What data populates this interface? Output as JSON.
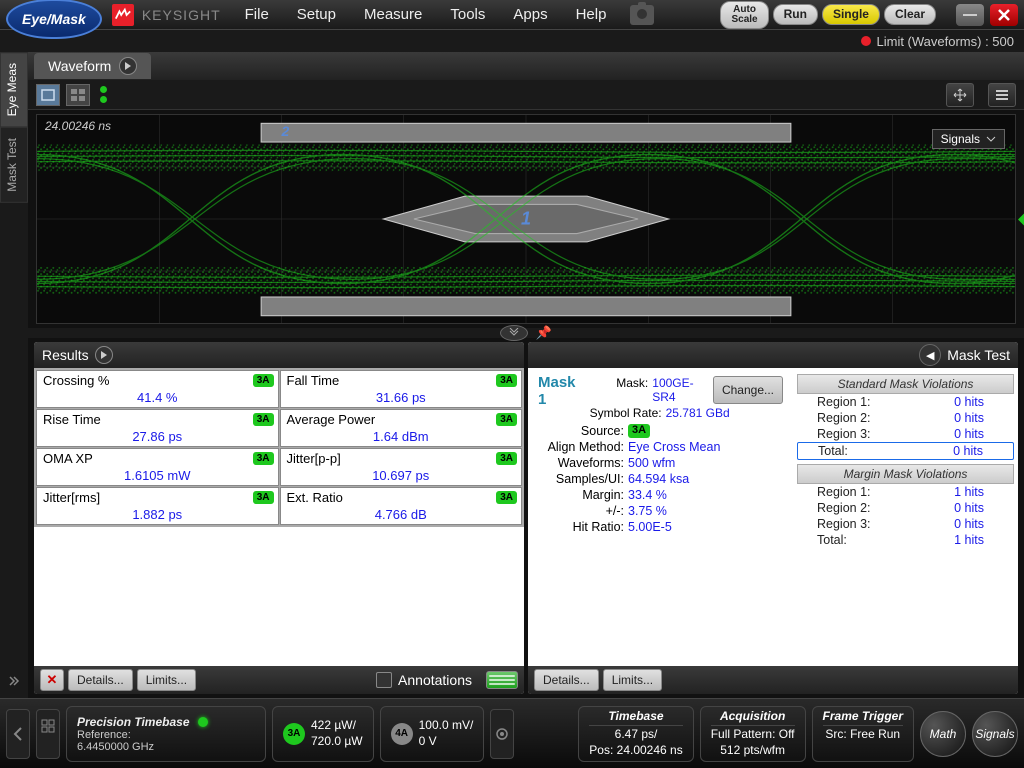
{
  "mode_label": "Eye/Mask",
  "brand": "KEYSIGHT",
  "menu": [
    "File",
    "Setup",
    "Measure",
    "Tools",
    "Apps",
    "Help"
  ],
  "top_buttons": {
    "auto_scale": "Auto\nScale",
    "run": "Run",
    "single": "Single",
    "clear": "Clear"
  },
  "limit_status": "Limit (Waveforms) : 500",
  "left_tabs": [
    "Eye Meas",
    "Mask Test"
  ],
  "waveform": {
    "tab_label": "Waveform",
    "timestamp": "24.00246 ns",
    "signals_drop": "Signals",
    "channel_marker": "3A",
    "mask_region_1": "1",
    "mask_region_2": "2",
    "colors": {
      "eye": "#1ec81e",
      "bg": "#0a0a0a",
      "mask": "#808080",
      "mask_inner": "#6a6a6a",
      "border": "#d0d0d0"
    }
  },
  "panels": {
    "results_title": "Results",
    "mask_title": "Mask Test"
  },
  "results": [
    {
      "name": "Crossing %",
      "value": "41.4 %",
      "ch": "3A"
    },
    {
      "name": "Fall Time",
      "value": "31.66 ps",
      "ch": "3A"
    },
    {
      "name": "Rise Time",
      "value": "27.86 ps",
      "ch": "3A"
    },
    {
      "name": "Average Power",
      "value": "1.64 dBm",
      "ch": "3A"
    },
    {
      "name": "OMA XP",
      "value": "1.6105 mW",
      "ch": "3A"
    },
    {
      "name": "Jitter[p-p]",
      "value": "10.697 ps",
      "ch": "3A"
    },
    {
      "name": "Jitter[rms]",
      "value": "1.882 ps",
      "ch": "3A"
    },
    {
      "name": "Ext. Ratio",
      "value": "4.766 dB",
      "ch": "3A"
    }
  ],
  "results_foot": {
    "details": "Details...",
    "limits": "Limits...",
    "annotations": "Annotations"
  },
  "mask_detail": {
    "heading": "Mask 1",
    "mask_label": "Mask:",
    "mask_val": "100GE-SR4",
    "change_btn": "Change...",
    "rate_label": "Symbol Rate:",
    "rate_val": "25.781 GBd",
    "rows": [
      {
        "k": "Source:",
        "v": "3A",
        "badge": true
      },
      {
        "k": "Align Method:",
        "v": "Eye Cross Mean"
      },
      {
        "k": "Waveforms:",
        "v": "500 wfm"
      },
      {
        "k": "Samples/UI:",
        "v": "64.594 ksa"
      },
      {
        "k": "Margin:",
        "v": "33.4 %"
      },
      {
        "k": "+/-:",
        "v": "3.75 %"
      },
      {
        "k": "Hit Ratio:",
        "v": "5.00E-5"
      }
    ],
    "std_head": "Standard Mask Violations",
    "std": [
      {
        "k": "Region 1:",
        "v": "0 hits"
      },
      {
        "k": "Region 2:",
        "v": "0 hits"
      },
      {
        "k": "Region 3:",
        "v": "0 hits"
      }
    ],
    "std_total": {
      "k": "Total:",
      "v": "0 hits"
    },
    "mar_head": "Margin Mask Violations",
    "mar": [
      {
        "k": "Region 1:",
        "v": "1 hits"
      },
      {
        "k": "Region 2:",
        "v": "0 hits"
      },
      {
        "k": "Region 3:",
        "v": "0 hits"
      }
    ],
    "mar_total": {
      "k": "Total:",
      "v": "1 hits"
    },
    "details": "Details...",
    "limits": "Limits..."
  },
  "status": {
    "ptb": {
      "title": "Precision Timebase",
      "l1": "Reference:",
      "l2": "6.4450000 GHz"
    },
    "ch3a": {
      "label": "3A",
      "l1": "422 µW/",
      "l2": "720.0 µW"
    },
    "ch4a": {
      "label": "4A",
      "l1": "100.0 mV/",
      "l2": "0 V"
    },
    "timebase": {
      "title": "Timebase",
      "l1": "6.47 ps/",
      "l2": "Pos: 24.00246 ns"
    },
    "acq": {
      "title": "Acquisition",
      "l1": "Full Pattern: Off",
      "l2": "512 pts/wfm"
    },
    "trig": {
      "title": "Frame Trigger",
      "l1": "Src: Free Run"
    },
    "math_btn": "Math",
    "signals_btn": "Signals"
  }
}
